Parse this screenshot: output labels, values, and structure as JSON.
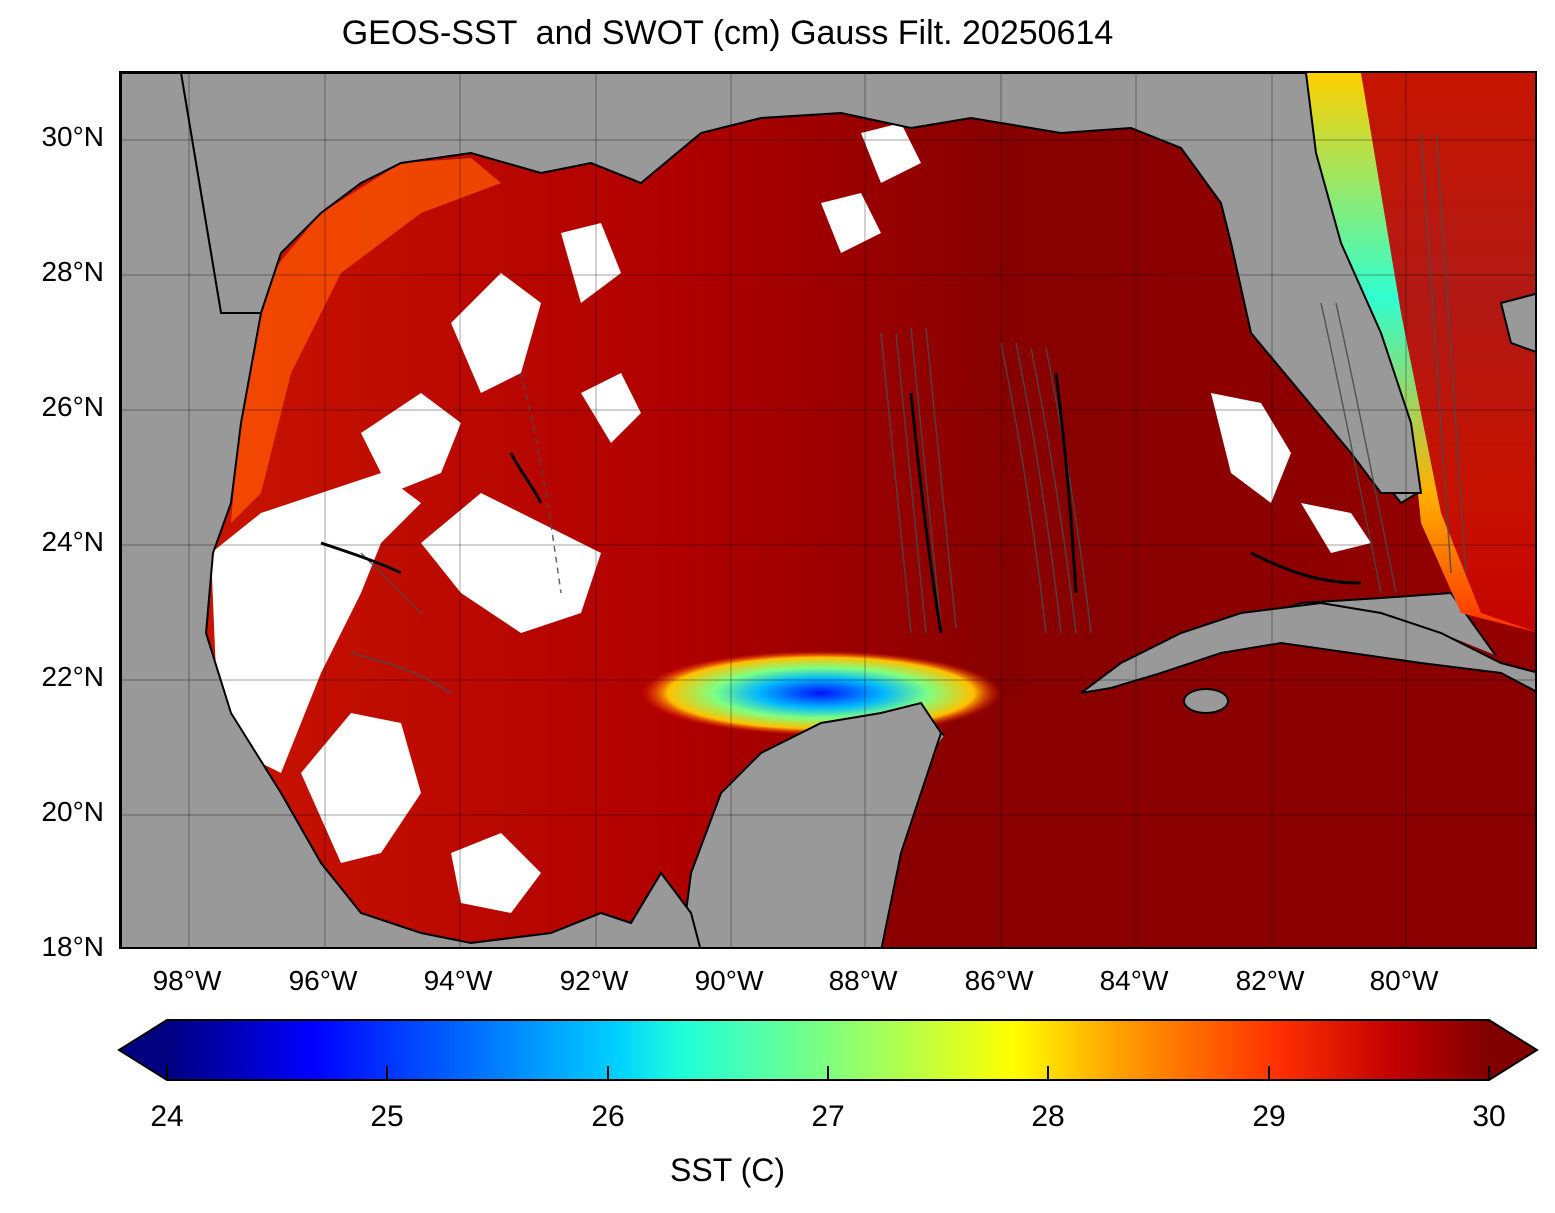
{
  "title": "GEOS-SST  and SWOT (cm) Gauss Filt. 20250614",
  "map": {
    "lat_ticks": [
      "30°N",
      "28°N",
      "26°N",
      "24°N",
      "22°N",
      "20°N",
      "18°N"
    ],
    "lon_ticks": [
      "98°W",
      "96°W",
      "94°W",
      "92°W",
      "90°W",
      "88°W",
      "86°W",
      "84°W",
      "82°W",
      "80°W"
    ],
    "land_color": "#999999",
    "missing_data_color": "#ffffff",
    "gridlines": true
  },
  "colorbar": {
    "label": "SST (C)",
    "ticks": [
      "24",
      "25",
      "26",
      "27",
      "28",
      "29",
      "30"
    ],
    "min": 24,
    "max": 30,
    "colormap": "jet",
    "extend": "both"
  }
}
